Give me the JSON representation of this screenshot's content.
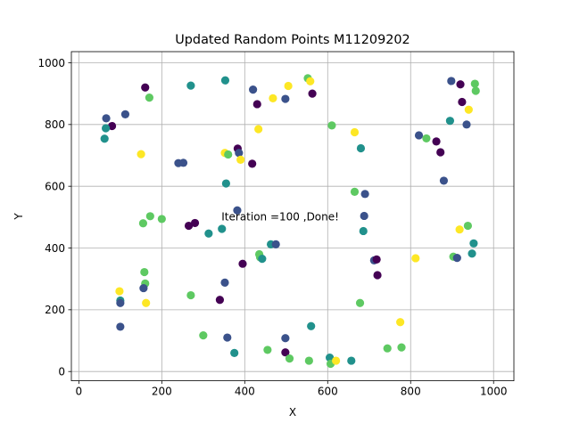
{
  "chart_data": {
    "type": "scatter",
    "title": "Updated Random Points M11209202",
    "xlabel": "X",
    "ylabel": "Y",
    "xlim": [
      -18,
      1049
    ],
    "ylim": [
      -30,
      1036
    ],
    "xticks": [
      0,
      200,
      400,
      600,
      800,
      1000
    ],
    "yticks": [
      0,
      200,
      400,
      600,
      800,
      1000
    ],
    "grid": true,
    "annotation": {
      "text": "Iteration =100 ,Done!",
      "x": 344,
      "y": 490
    },
    "palette": [
      "#440154",
      "#3b528b",
      "#21918c",
      "#5ec962",
      "#fde725"
    ],
    "points": [
      {
        "x": 160,
        "y": 920,
        "c": 0
      },
      {
        "x": 170,
        "y": 887,
        "c": 3
      },
      {
        "x": 112,
        "y": 833,
        "c": 1
      },
      {
        "x": 66,
        "y": 820,
        "c": 1
      },
      {
        "x": 80,
        "y": 795,
        "c": 0
      },
      {
        "x": 65,
        "y": 788,
        "c": 2
      },
      {
        "x": 62,
        "y": 754,
        "c": 2
      },
      {
        "x": 150,
        "y": 704,
        "c": 4
      },
      {
        "x": 270,
        "y": 926,
        "c": 2
      },
      {
        "x": 353,
        "y": 943,
        "c": 2
      },
      {
        "x": 420,
        "y": 913,
        "c": 1
      },
      {
        "x": 430,
        "y": 866,
        "c": 0
      },
      {
        "x": 468,
        "y": 885,
        "c": 4
      },
      {
        "x": 498,
        "y": 883,
        "c": 1
      },
      {
        "x": 505,
        "y": 925,
        "c": 4
      },
      {
        "x": 552,
        "y": 950,
        "c": 3
      },
      {
        "x": 558,
        "y": 940,
        "c": 4
      },
      {
        "x": 563,
        "y": 900,
        "c": 0
      },
      {
        "x": 433,
        "y": 785,
        "c": 4
      },
      {
        "x": 610,
        "y": 797,
        "c": 3
      },
      {
        "x": 665,
        "y": 775,
        "c": 4
      },
      {
        "x": 680,
        "y": 723,
        "c": 2
      },
      {
        "x": 240,
        "y": 675,
        "c": 1
      },
      {
        "x": 252,
        "y": 676,
        "c": 1
      },
      {
        "x": 352,
        "y": 708,
        "c": 4
      },
      {
        "x": 360,
        "y": 703,
        "c": 3
      },
      {
        "x": 383,
        "y": 722,
        "c": 0
      },
      {
        "x": 386,
        "y": 708,
        "c": 1
      },
      {
        "x": 390,
        "y": 686,
        "c": 4
      },
      {
        "x": 418,
        "y": 673,
        "c": 0
      },
      {
        "x": 355,
        "y": 609,
        "c": 2
      },
      {
        "x": 898,
        "y": 941,
        "c": 1
      },
      {
        "x": 920,
        "y": 930,
        "c": 0
      },
      {
        "x": 955,
        "y": 932,
        "c": 3
      },
      {
        "x": 957,
        "y": 909,
        "c": 3
      },
      {
        "x": 924,
        "y": 873,
        "c": 0
      },
      {
        "x": 940,
        "y": 848,
        "c": 4
      },
      {
        "x": 895,
        "y": 812,
        "c": 2
      },
      {
        "x": 935,
        "y": 800,
        "c": 1
      },
      {
        "x": 820,
        "y": 765,
        "c": 1
      },
      {
        "x": 838,
        "y": 755,
        "c": 3
      },
      {
        "x": 862,
        "y": 745,
        "c": 0
      },
      {
        "x": 872,
        "y": 710,
        "c": 0
      },
      {
        "x": 880,
        "y": 618,
        "c": 1
      },
      {
        "x": 665,
        "y": 582,
        "c": 3
      },
      {
        "x": 690,
        "y": 575,
        "c": 1
      },
      {
        "x": 688,
        "y": 504,
        "c": 1
      },
      {
        "x": 686,
        "y": 455,
        "c": 2
      },
      {
        "x": 712,
        "y": 360,
        "c": 1
      },
      {
        "x": 718,
        "y": 363,
        "c": 0
      },
      {
        "x": 720,
        "y": 312,
        "c": 0
      },
      {
        "x": 812,
        "y": 367,
        "c": 4
      },
      {
        "x": 918,
        "y": 460,
        "c": 4
      },
      {
        "x": 938,
        "y": 472,
        "c": 3
      },
      {
        "x": 952,
        "y": 415,
        "c": 2
      },
      {
        "x": 948,
        "y": 382,
        "c": 2
      },
      {
        "x": 903,
        "y": 372,
        "c": 3
      },
      {
        "x": 912,
        "y": 368,
        "c": 1
      },
      {
        "x": 155,
        "y": 480,
        "c": 3
      },
      {
        "x": 172,
        "y": 503,
        "c": 3
      },
      {
        "x": 200,
        "y": 494,
        "c": 3
      },
      {
        "x": 265,
        "y": 472,
        "c": 0
      },
      {
        "x": 280,
        "y": 481,
        "c": 0
      },
      {
        "x": 313,
        "y": 447,
        "c": 2
      },
      {
        "x": 345,
        "y": 462,
        "c": 2
      },
      {
        "x": 382,
        "y": 522,
        "c": 1
      },
      {
        "x": 395,
        "y": 349,
        "c": 0
      },
      {
        "x": 435,
        "y": 380,
        "c": 3
      },
      {
        "x": 437,
        "y": 370,
        "c": 3
      },
      {
        "x": 442,
        "y": 365,
        "c": 2
      },
      {
        "x": 463,
        "y": 412,
        "c": 2
      },
      {
        "x": 475,
        "y": 412,
        "c": 1
      },
      {
        "x": 158,
        "y": 322,
        "c": 3
      },
      {
        "x": 160,
        "y": 285,
        "c": 3
      },
      {
        "x": 156,
        "y": 270,
        "c": 1
      },
      {
        "x": 98,
        "y": 260,
        "c": 4
      },
      {
        "x": 100,
        "y": 230,
        "c": 2
      },
      {
        "x": 100,
        "y": 222,
        "c": 1
      },
      {
        "x": 162,
        "y": 222,
        "c": 4
      },
      {
        "x": 270,
        "y": 247,
        "c": 3
      },
      {
        "x": 352,
        "y": 288,
        "c": 1
      },
      {
        "x": 340,
        "y": 232,
        "c": 0
      },
      {
        "x": 100,
        "y": 145,
        "c": 1
      },
      {
        "x": 300,
        "y": 117,
        "c": 3
      },
      {
        "x": 358,
        "y": 110,
        "c": 1
      },
      {
        "x": 375,
        "y": 60,
        "c": 2
      },
      {
        "x": 455,
        "y": 70,
        "c": 3
      },
      {
        "x": 498,
        "y": 108,
        "c": 1
      },
      {
        "x": 498,
        "y": 62,
        "c": 0
      },
      {
        "x": 508,
        "y": 42,
        "c": 3
      },
      {
        "x": 555,
        "y": 35,
        "c": 3
      },
      {
        "x": 560,
        "y": 147,
        "c": 2
      },
      {
        "x": 605,
        "y": 45,
        "c": 2
      },
      {
        "x": 607,
        "y": 25,
        "c": 3
      },
      {
        "x": 620,
        "y": 35,
        "c": 4
      },
      {
        "x": 657,
        "y": 35,
        "c": 2
      },
      {
        "x": 678,
        "y": 222,
        "c": 3
      },
      {
        "x": 744,
        "y": 75,
        "c": 3
      },
      {
        "x": 775,
        "y": 160,
        "c": 4
      },
      {
        "x": 778,
        "y": 78,
        "c": 3
      }
    ]
  }
}
